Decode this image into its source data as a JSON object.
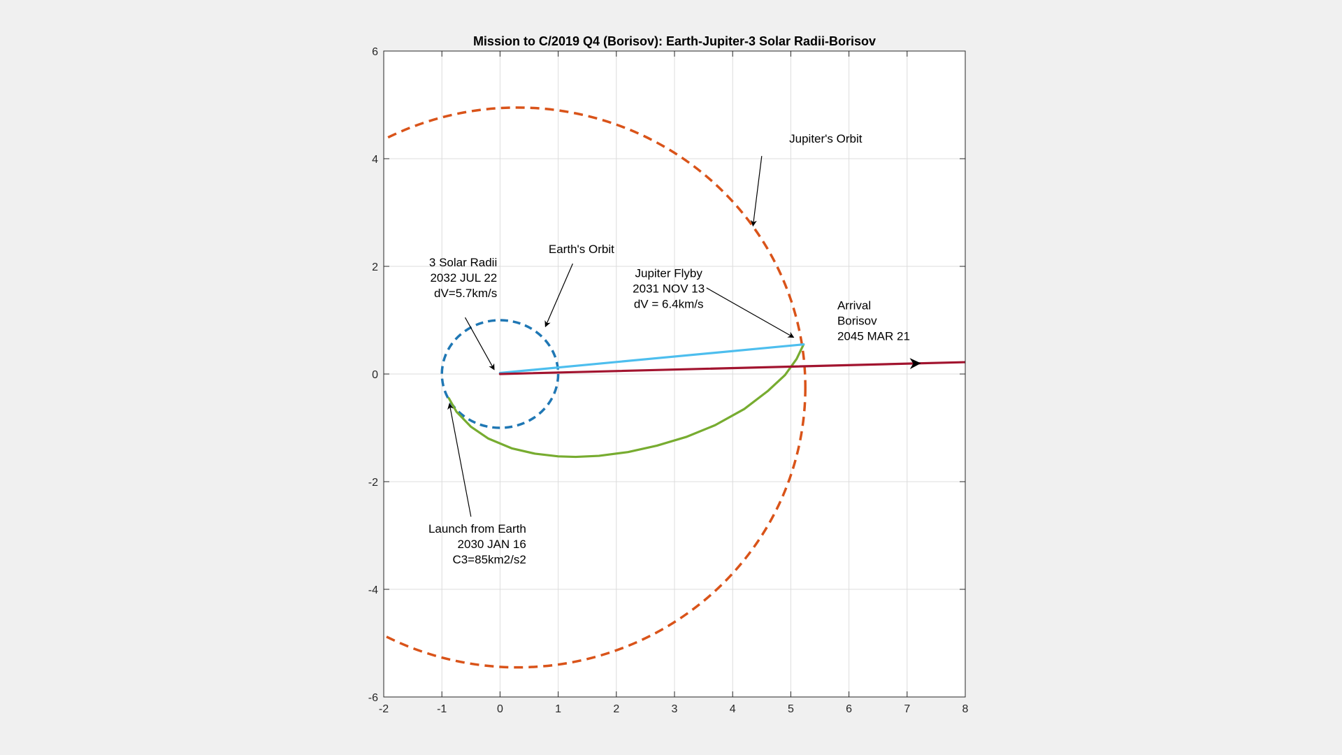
{
  "chart_data": {
    "type": "line",
    "title": "Mission to C/2019 Q4 (Borisov): Earth-Jupiter-3 Solar Radii-Borisov",
    "xlabel": "",
    "ylabel": "",
    "xlim": [
      -2,
      8
    ],
    "ylim": [
      -6,
      6
    ],
    "xticks": [
      -2,
      -1,
      0,
      1,
      2,
      3,
      4,
      5,
      6,
      7,
      8
    ],
    "yticks": [
      -6,
      -4,
      -2,
      0,
      2,
      4,
      6
    ],
    "grid": true,
    "legend": "none",
    "colors": {
      "earth_orbit": "#1f77b4",
      "jupiter_orbit": "#d95319",
      "earth_to_jupiter": "#77ac30",
      "jupiter_to_sun": "#4dbeee",
      "sun_to_borisov": "#a2142f"
    },
    "orbits": [
      {
        "key": "earth_orbit",
        "style": "dashed",
        "center": [
          0,
          0
        ],
        "radius_x": 1.0,
        "radius_y": 1.0
      },
      {
        "key": "jupiter_orbit",
        "style": "dashed",
        "center": [
          0.3,
          -0.25
        ],
        "radius_x": 4.95,
        "radius_y": 5.2
      }
    ],
    "series": [
      {
        "key": "earth_to_jupiter",
        "style": "solid",
        "x": [
          -0.88,
          -0.75,
          -0.5,
          -0.2,
          0.2,
          0.6,
          1.0,
          1.3,
          1.7,
          2.2,
          2.7,
          3.2,
          3.7,
          4.2,
          4.6,
          4.9,
          5.1,
          5.22
        ],
        "y": [
          -0.45,
          -0.7,
          -0.98,
          -1.2,
          -1.38,
          -1.48,
          -1.53,
          -1.54,
          -1.52,
          -1.45,
          -1.33,
          -1.17,
          -0.95,
          -0.65,
          -0.32,
          -0.02,
          0.28,
          0.55
        ]
      },
      {
        "key": "jupiter_to_sun",
        "style": "solid",
        "x": [
          5.22,
          0.0
        ],
        "y": [
          0.55,
          0.02
        ]
      },
      {
        "key": "sun_to_borisov",
        "style": "solid",
        "x": [
          0.0,
          8.0
        ],
        "y": [
          0.0,
          0.22
        ]
      }
    ],
    "annotations": [
      {
        "lines": [
          "Jupiter's Orbit"
        ],
        "text_at": [
          5.6,
          4.3
        ],
        "anchor": "middle",
        "arrow_from": [
          4.5,
          4.05
        ],
        "arrow_to": [
          4.35,
          2.75
        ]
      },
      {
        "lines": [
          "Earth's Orbit"
        ],
        "text_at": [
          1.4,
          2.25
        ],
        "anchor": "middle",
        "arrow_from": [
          1.25,
          2.05
        ],
        "arrow_to": [
          0.78,
          0.88
        ]
      },
      {
        "lines": [
          "3 Solar Radii",
          "2032 JUL 22",
          "dV=5.7km/s"
        ],
        "text_at": [
          -0.05,
          2.0
        ],
        "anchor": "end",
        "arrow_from": [
          -0.6,
          1.05
        ],
        "arrow_to": [
          -0.1,
          0.08
        ]
      },
      {
        "lines": [
          "Jupiter Flyby",
          "2031 NOV 13",
          "dV = 6.4km/s"
        ],
        "text_at": [
          2.9,
          1.8
        ],
        "anchor": "middle",
        "arrow_from": [
          3.55,
          1.6
        ],
        "arrow_to": [
          5.05,
          0.68
        ]
      },
      {
        "lines": [
          "Arrival",
          "Borisov",
          "2045 MAR 21"
        ],
        "text_at": [
          5.8,
          1.2
        ],
        "anchor": "start",
        "arrow_from": null,
        "arrow_to": null
      },
      {
        "lines": [
          "Launch from Earth",
          "2030 JAN 16",
          "C3=85km2/s2"
        ],
        "text_at": [
          0.45,
          -2.95
        ],
        "anchor": "end",
        "arrow_from": [
          -0.5,
          -2.65
        ],
        "arrow_to": [
          -0.87,
          -0.55
        ]
      }
    ],
    "direction_arrow": {
      "series": "sun_to_borisov",
      "at_x": 7.2
    }
  }
}
